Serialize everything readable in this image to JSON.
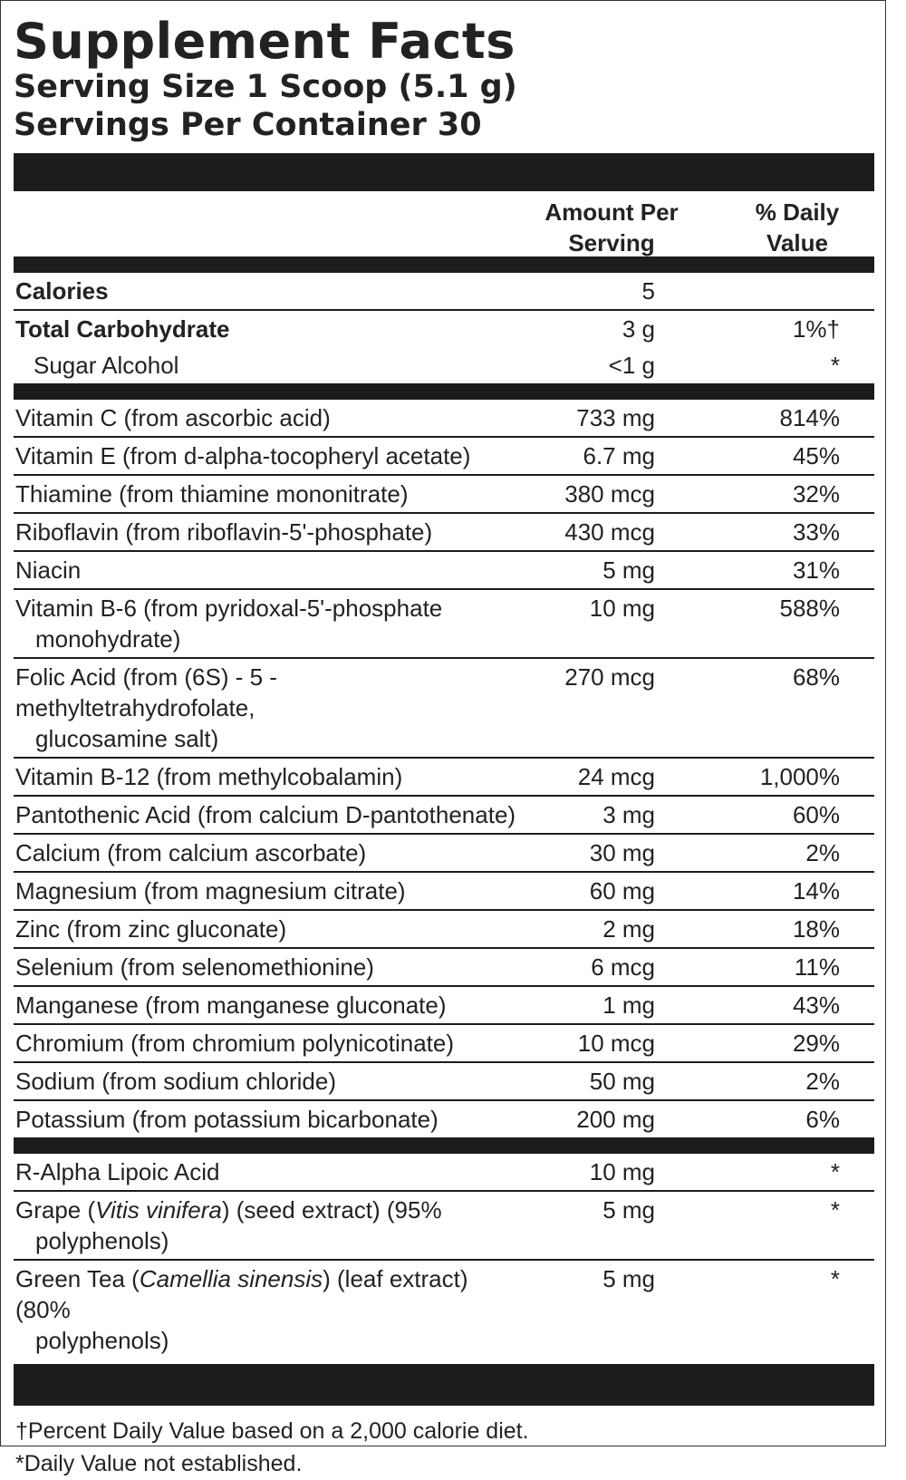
{
  "title": "Supplement Facts",
  "serving_size": "Serving Size 1 Scoop (5.1 g)",
  "servings_per_container": "Servings Per Container 30",
  "header": {
    "amount_line1": "Amount Per",
    "amount_line2": "Serving",
    "dv_line1": "% Daily",
    "dv_line2": "Value"
  },
  "macros": [
    {
      "name": "Calories",
      "amount": "5",
      "dv": ""
    },
    {
      "name": "Total Carbohydrate",
      "amount": "3 g",
      "dv": "1%†"
    },
    {
      "name": "Sugar Alcohol",
      "amount": "<1 g",
      "dv": "*"
    }
  ],
  "vitamins": [
    {
      "name": "Vitamin C (from ascorbic acid)",
      "amount": "733 mg",
      "dv": "814%"
    },
    {
      "name": "Vitamin E (from d-alpha-tocopheryl acetate)",
      "amount": "6.7 mg",
      "dv": "45%"
    },
    {
      "name": "Thiamine (from thiamine mononitrate)",
      "amount": "380 mcg",
      "dv": "32%"
    },
    {
      "name": "Riboflavin (from riboflavin-5'-phosphate)",
      "amount": "430 mcg",
      "dv": "33%"
    },
    {
      "name": "Niacin",
      "amount": "5 mg",
      "dv": "31%"
    },
    {
      "name": "Vitamin B-6 (from pyridoxal-5'-phosphate",
      "name2": "monohydrate)",
      "amount": "10 mg",
      "dv": "588%"
    },
    {
      "name": "Folic Acid (from (6S) - 5 - methyltetrahydrofolate,",
      "name2": "glucosamine salt)",
      "amount": "270 mcg",
      "dv": "68%"
    },
    {
      "name": "Vitamin B-12 (from methylcobalamin)",
      "amount": "24 mcg",
      "dv": "1,000%"
    },
    {
      "name": "Pantothenic Acid (from calcium D-pantothenate)",
      "amount": "3 mg",
      "dv": "60%"
    },
    {
      "name": "Calcium (from calcium ascorbate)",
      "amount": "30 mg",
      "dv": "2%"
    },
    {
      "name": "Magnesium (from magnesium citrate)",
      "amount": "60 mg",
      "dv": "14%"
    },
    {
      "name": "Zinc (from zinc gluconate)",
      "amount": "2 mg",
      "dv": "18%"
    },
    {
      "name": "Selenium (from selenomethionine)",
      "amount": "6 mcg",
      "dv": "11%"
    },
    {
      "name": "Manganese (from manganese gluconate)",
      "amount": "1 mg",
      "dv": "43%"
    },
    {
      "name": "Chromium (from chromium polynicotinate)",
      "amount": "10 mcg",
      "dv": "29%"
    },
    {
      "name": "Sodium (from sodium chloride)",
      "amount": "50 mg",
      "dv": "2%"
    },
    {
      "name": "Potassium (from potassium bicarbonate)",
      "amount": "200 mg",
      "dv": "6%"
    }
  ],
  "others": [
    {
      "name": "R-Alpha Lipoic Acid",
      "amount": "10 mg",
      "dv": "*"
    },
    {
      "name_pre": "Grape (",
      "name_italic": "Vitis vinifera",
      "name_post": ") (seed extract) (95%",
      "name2": "polyphenols)",
      "amount": "5 mg",
      "dv": "*"
    },
    {
      "name_pre": "Green Tea (",
      "name_italic": "Camellia sinensis",
      "name_post": ") (leaf extract) (80%",
      "name2": "polyphenols)",
      "amount": "5 mg",
      "dv": "*"
    }
  ],
  "footnotes": [
    "†Percent Daily Value based on a 2,000 calorie diet.",
    "*Daily Value not established."
  ]
}
